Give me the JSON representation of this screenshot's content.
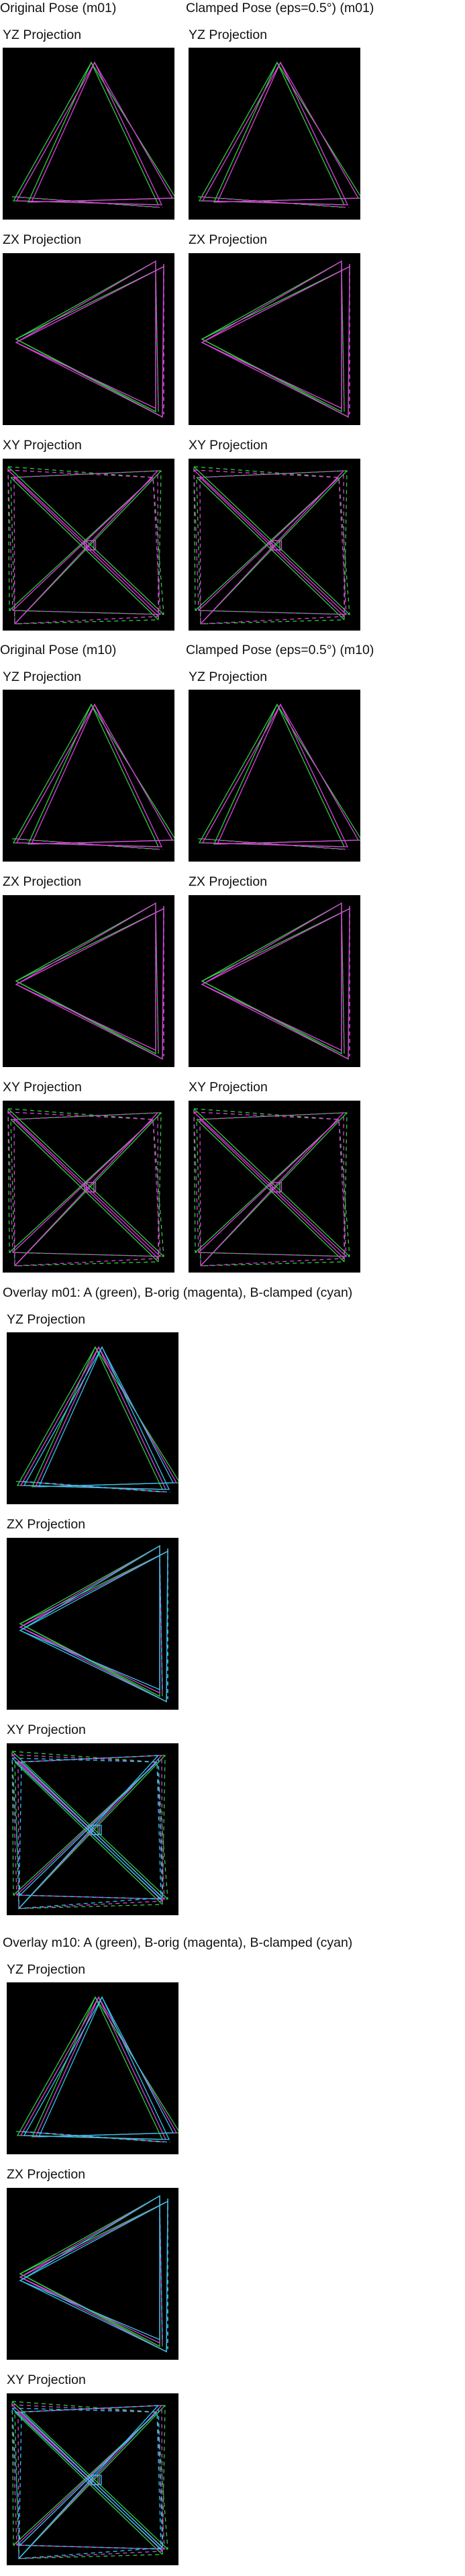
{
  "colors": {
    "background": "#000000",
    "pose_a": "#2ecc40",
    "pose_b_orig": "#e040e0",
    "pose_b_clamped": "#30c8e8"
  },
  "projection_label": "YZ Projection",
  "sections": [
    {
      "left_title": "Original Pose (m01)",
      "right_title": "Clamped Pose (eps=0.5°) (m01)",
      "labels": [
        "YZ Projection",
        "ZX Projection",
        "XY Projection"
      ]
    },
    {
      "left_title": "Original Pose (m10)",
      "right_title": "Clamped Pose (eps=0.5°) (m10)",
      "labels": [
        "YZ Projection",
        "ZX Projection",
        "XY Projection"
      ]
    }
  ],
  "overlays": [
    {
      "title": "Overlay m01: A (green), B-orig (magenta), B-clamped (cyan)",
      "labels": [
        "YZ Projection",
        "ZX Projection",
        "XY Projection"
      ]
    },
    {
      "title": "Overlay m10: A (green), B-orig (magenta), B-clamped (cyan)",
      "labels": [
        "YZ Projection",
        "ZX Projection",
        "XY Projection"
      ]
    }
  ]
}
